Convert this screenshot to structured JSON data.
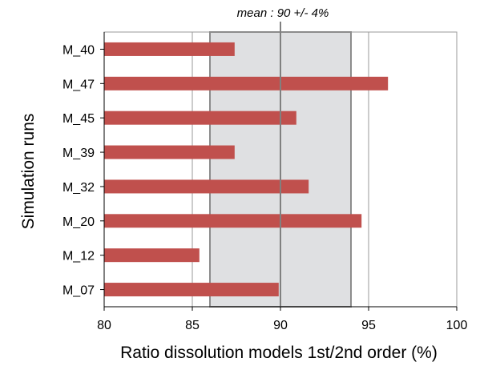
{
  "chart_data": {
    "type": "bar",
    "orientation": "horizontal",
    "categories": [
      "M_40",
      "M_47",
      "M_45",
      "M_39",
      "M_32",
      "M_20",
      "M_12",
      "M_07"
    ],
    "values": [
      87.4,
      96.1,
      90.9,
      87.4,
      91.6,
      94.6,
      85.4,
      89.9
    ],
    "xlabel": "Ratio dissolution models 1st/2nd order (%)",
    "ylabel": "Simulation runs",
    "xlim": [
      80,
      100
    ],
    "xticks": [
      "80",
      "85",
      "90",
      "95",
      "100"
    ],
    "grid": "vertical",
    "band": {
      "from": 86,
      "to": 94
    },
    "mean_line": 90,
    "annotation": "mean : 90 +/- 4%",
    "colors": {
      "bar": "#c0504d",
      "band_fill": "#dfe0e2",
      "band_stroke": "#8c8c8c",
      "grid": "#9a9a9a",
      "mean_line": "#808080"
    }
  }
}
